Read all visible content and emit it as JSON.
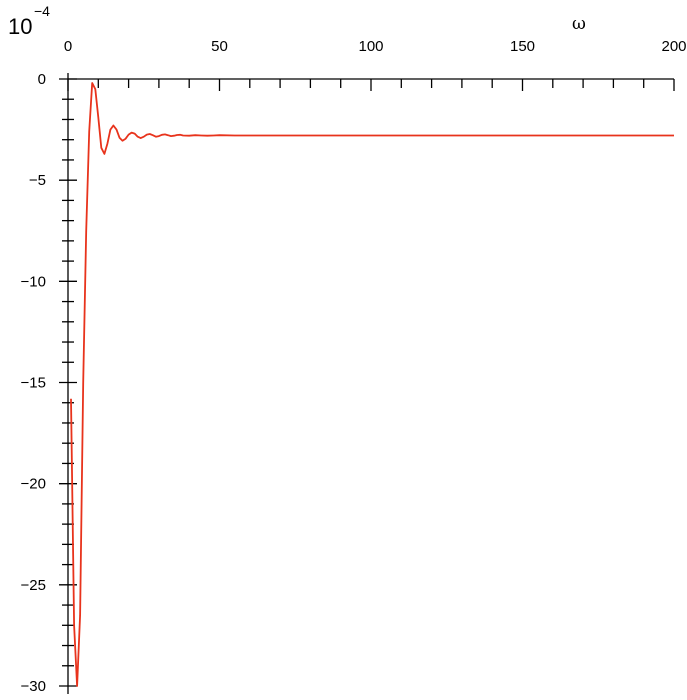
{
  "chart_data": {
    "type": "line",
    "title": "",
    "xlabel": "ω",
    "ylabel": "",
    "y_scale_label": {
      "base": "10",
      "exponent": "−4"
    },
    "xlim": [
      0,
      200
    ],
    "ylim": [
      -30,
      0
    ],
    "x_ticks": [
      0,
      50,
      100,
      150,
      200
    ],
    "x_tick_labels": [
      "0",
      "50",
      "100",
      "150",
      "200"
    ],
    "x_minor_step": 10,
    "y_ticks": [
      0,
      -5,
      -10,
      -15,
      -20,
      -25,
      -30
    ],
    "y_tick_labels": [
      "0",
      "−5",
      "−10",
      "−15",
      "−20",
      "−25",
      "−30"
    ],
    "y_minor_step": 1,
    "x_axis_position": "top",
    "grid": false,
    "legend": "none",
    "series_color": "#e8331c",
    "series": [
      {
        "x": [
          1,
          2,
          3,
          4,
          5,
          6,
          7,
          8,
          9,
          10,
          11,
          12,
          13,
          14,
          15,
          16,
          17,
          18,
          19,
          20,
          21,
          22,
          23,
          24,
          25,
          26,
          27,
          28,
          29,
          30,
          31,
          32,
          33,
          34,
          35,
          36,
          37,
          38,
          40,
          42,
          44,
          46,
          48,
          50,
          55,
          60,
          70,
          80,
          100,
          120,
          150,
          180,
          200
        ],
        "y": [
          -15.8,
          -27.0,
          -30.0,
          -26.5,
          -15.0,
          -7.5,
          -2.6,
          -0.2,
          -0.5,
          -1.9,
          -3.4,
          -3.7,
          -3.2,
          -2.5,
          -2.3,
          -2.5,
          -2.9,
          -3.05,
          -2.95,
          -2.75,
          -2.65,
          -2.7,
          -2.85,
          -2.92,
          -2.85,
          -2.75,
          -2.72,
          -2.78,
          -2.85,
          -2.82,
          -2.76,
          -2.74,
          -2.78,
          -2.82,
          -2.8,
          -2.77,
          -2.76,
          -2.79,
          -2.8,
          -2.78,
          -2.79,
          -2.8,
          -2.79,
          -2.78,
          -2.79,
          -2.79,
          -2.79,
          -2.79,
          -2.79,
          -2.79,
          -2.79,
          -2.79,
          -2.79
        ]
      }
    ]
  }
}
